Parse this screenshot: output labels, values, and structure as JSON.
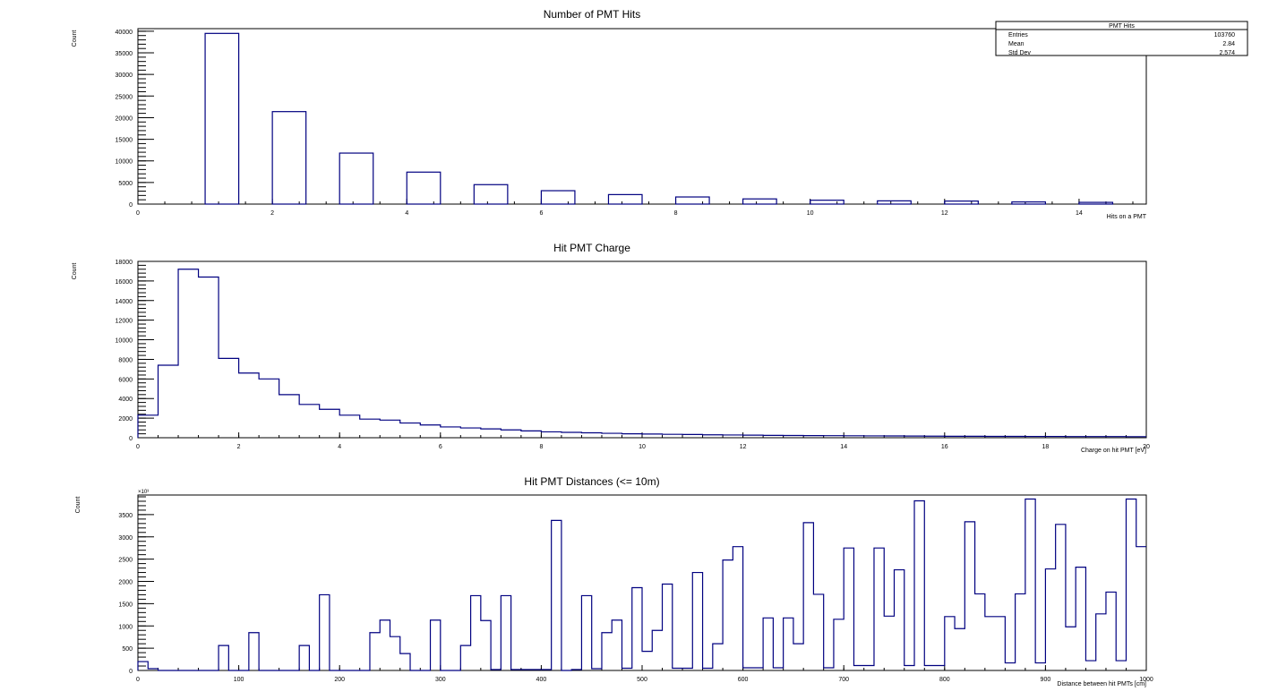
{
  "colors": {
    "line": "#000080",
    "axis": "#000000",
    "background": "#ffffff"
  },
  "chart_data": [
    {
      "type": "histogram",
      "style": "bars",
      "title": "Number of PMT Hits",
      "xlabel": "Hits on a PMT",
      "ylabel": "Count",
      "xlim": [
        0,
        15
      ],
      "ylim": [
        0,
        40600
      ],
      "xticks": [
        "0",
        "2",
        "4",
        "6",
        "8",
        "10",
        "12",
        "14"
      ],
      "yticks": [
        "0",
        "5000",
        "10000",
        "15000",
        "20000",
        "25000",
        "30000",
        "35000",
        "40000"
      ],
      "bars": [
        {
          "x0": 1,
          "x1": 1.5,
          "value": 39500
        },
        {
          "x0": 2,
          "x1": 2.5,
          "value": 21400
        },
        {
          "x0": 3,
          "x1": 3.5,
          "value": 11800
        },
        {
          "x0": 4,
          "x1": 4.5,
          "value": 7400
        },
        {
          "x0": 5,
          "x1": 5.5,
          "value": 4500
        },
        {
          "x0": 6,
          "x1": 6.5,
          "value": 3100
        },
        {
          "x0": 7,
          "x1": 7.5,
          "value": 2200
        },
        {
          "x0": 8,
          "x1": 8.5,
          "value": 1650
        },
        {
          "x0": 9,
          "x1": 9.5,
          "value": 1200
        },
        {
          "x0": 10,
          "x1": 10.5,
          "value": 900
        },
        {
          "x0": 11,
          "x1": 11.5,
          "value": 750
        },
        {
          "x0": 12,
          "x1": 12.5,
          "value": 700
        },
        {
          "x0": 13,
          "x1": 13.5,
          "value": 500
        },
        {
          "x0": 14,
          "x1": 14.5,
          "value": 400
        }
      ],
      "stats": {
        "name": "PMT Hits",
        "rows": [
          {
            "label": "Entries",
            "value": "103760"
          },
          {
            "label": "Mean",
            "value": "2.84"
          },
          {
            "label": "Std Dev",
            "value": "2.574"
          }
        ]
      }
    },
    {
      "type": "histogram",
      "style": "step",
      "title": "Hit PMT Charge",
      "xlabel": "Charge on hit PMT [eV]",
      "ylabel": "Count",
      "xlim": [
        0,
        20
      ],
      "ylim": [
        0,
        18000
      ],
      "xticks": [
        "0",
        "2",
        "4",
        "6",
        "8",
        "10",
        "12",
        "14",
        "16",
        "18",
        "20"
      ],
      "yticks": [
        "0",
        "2000",
        "4000",
        "6000",
        "8000",
        "10000",
        "12000",
        "14000",
        "16000",
        "18000"
      ],
      "bin_width": 0.4,
      "values": [
        2300,
        7400,
        17200,
        16400,
        8100,
        6600,
        6000,
        4400,
        3400,
        2900,
        2300,
        1900,
        1800,
        1500,
        1300,
        1100,
        1000,
        900,
        800,
        700,
        600,
        550,
        500,
        450,
        400,
        380,
        350,
        330,
        300,
        280,
        260,
        240,
        230,
        220,
        210,
        200,
        190,
        180,
        170,
        160,
        150,
        150,
        140,
        140,
        130,
        130,
        120,
        120,
        120,
        110
      ]
    },
    {
      "type": "histogram",
      "style": "step",
      "title": "Hit PMT Distances (<= 10m)",
      "xlabel": "Distance between hit PMTs [cm]",
      "ylabel": "Count",
      "yscale_label": "×10³",
      "xlim": [
        0,
        1000
      ],
      "ylim": [
        0,
        3940
      ],
      "xticks": [
        "0",
        "100",
        "200",
        "300",
        "400",
        "500",
        "600",
        "700",
        "800",
        "900",
        "1000"
      ],
      "yticks": [
        "0",
        "500",
        "1000",
        "1500",
        "2000",
        "2500",
        "3000",
        "3500"
      ],
      "bin_width": 10,
      "values": [
        200,
        40,
        0,
        0,
        0,
        0,
        0,
        0,
        560,
        0,
        0,
        850,
        0,
        0,
        0,
        0,
        560,
        0,
        1700,
        0,
        0,
        0,
        0,
        850,
        1130,
        760,
        380,
        0,
        0,
        1130,
        0,
        0,
        560,
        1680,
        1120,
        20,
        1680,
        20,
        20,
        20,
        20,
        3370,
        0,
        20,
        1680,
        40,
        850,
        1130,
        50,
        1860,
        430,
        900,
        1940,
        50,
        50,
        2200,
        50,
        600,
        2480,
        2780,
        60,
        60,
        1180,
        60,
        1180,
        600,
        3320,
        1710,
        60,
        1150,
        2750,
        110,
        110,
        2750,
        1220,
        2260,
        110,
        3810,
        110,
        110,
        1210,
        940,
        3340,
        1720,
        1210,
        1210,
        170,
        1720,
        3850,
        170,
        2280,
        3280,
        980,
        2320,
        220,
        1270,
        1760,
        220,
        3850,
        2780
      ]
    }
  ]
}
